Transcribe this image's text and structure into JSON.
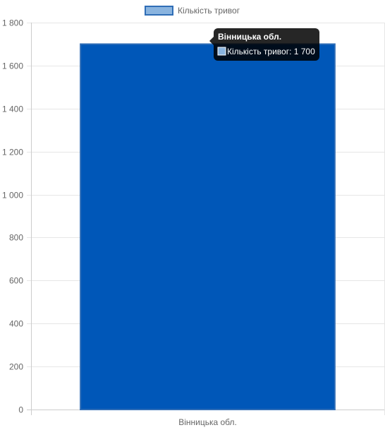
{
  "chart_data": {
    "type": "bar",
    "categories": [
      "Вінницька обл."
    ],
    "series": [
      {
        "name": "Кількість тривог",
        "values": [
          1700
        ],
        "fill_color": "#0057b8",
        "border_color": "#2f6db6",
        "legend_fill": "#8ab4df"
      }
    ],
    "ylim": [
      0,
      1800
    ],
    "y_ticks": [
      0,
      200,
      400,
      600,
      800,
      1000,
      1200,
      1400,
      1600,
      1800
    ],
    "y_tick_labels": [
      "0",
      "200",
      "400",
      "600",
      "800",
      "1 000",
      "1 200",
      "1 400",
      "1 600",
      "1 800"
    ],
    "grid": true,
    "legend_position": "top",
    "tooltip": {
      "title": "Вінницька обл.",
      "body": "Кількість тривог: 1 700",
      "swatch_color": "#8ab4df"
    }
  }
}
